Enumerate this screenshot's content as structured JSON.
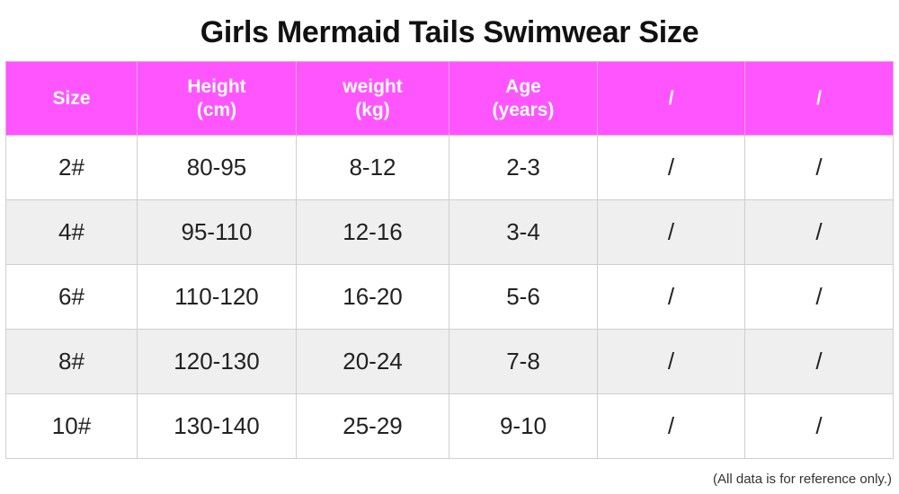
{
  "title": "Girls Mermaid Tails Swimwear Size",
  "colors": {
    "header_bg": "#ff55ff",
    "header_text": "#ffffff",
    "alt_row_bg": "#efefef",
    "border": "#cfcfcf"
  },
  "table": {
    "headers": [
      {
        "line1": "Size",
        "line2": ""
      },
      {
        "line1": "Height",
        "line2": "(cm)"
      },
      {
        "line1": "weight",
        "line2": "(kg)"
      },
      {
        "line1": "Age",
        "line2": "(years)"
      },
      {
        "line1": "/",
        "line2": ""
      },
      {
        "line1": "/",
        "line2": ""
      }
    ],
    "rows": [
      [
        "2#",
        "80-95",
        "8-12",
        "2-3",
        "/",
        "/"
      ],
      [
        "4#",
        "95-110",
        "12-16",
        "3-4",
        "/",
        "/"
      ],
      [
        "6#",
        "110-120",
        "16-20",
        "5-6",
        "/",
        "/"
      ],
      [
        "8#",
        "120-130",
        "20-24",
        "7-8",
        "/",
        "/"
      ],
      [
        "10#",
        "130-140",
        "25-29",
        "9-10",
        "/",
        "/"
      ]
    ]
  },
  "footnote": "(All data is for reference only.)"
}
